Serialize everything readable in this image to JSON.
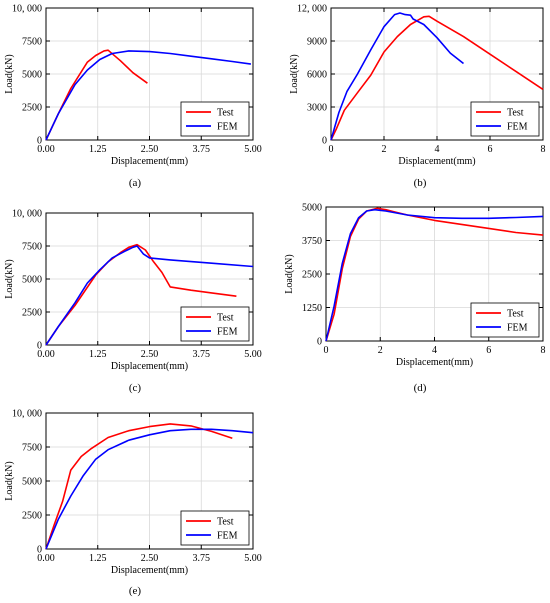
{
  "chart_data": [
    {
      "type": "line",
      "caption": "(a)",
      "xlabel": "Displacement(mm)",
      "ylabel": "Load(kN)",
      "xlim": [
        0,
        5
      ],
      "ylim": [
        0,
        10000
      ],
      "xticks": [
        0,
        1.25,
        2.5,
        3.75,
        5
      ],
      "xtick_labels": [
        "0.00",
        "1.25",
        "2.50",
        "3.75",
        "5.00"
      ],
      "yticks": [
        0,
        2500,
        5000,
        7500,
        10000
      ],
      "ytick_labels": [
        "0",
        "2500",
        "5000",
        "7500",
        "10, 000"
      ],
      "grid": true,
      "legend": "bottom-right",
      "series": [
        {
          "name": "Test",
          "color": "#ff0000",
          "x": [
            0,
            0.3,
            0.6,
            1.0,
            1.2,
            1.4,
            1.5,
            1.8,
            2.1,
            2.45
          ],
          "y": [
            0,
            2000,
            3900,
            5900,
            6400,
            6750,
            6800,
            6000,
            5100,
            4300
          ]
        },
        {
          "name": "FEM",
          "color": "#0000ff",
          "x": [
            0,
            0.3,
            0.7,
            1.0,
            1.3,
            1.6,
            2.0,
            2.5,
            3.0,
            3.5,
            4.0,
            4.5,
            4.95
          ],
          "y": [
            0,
            2000,
            4200,
            5300,
            6100,
            6550,
            6750,
            6700,
            6550,
            6350,
            6150,
            5950,
            5750
          ]
        }
      ]
    },
    {
      "type": "line",
      "caption": "(b)",
      "xlabel": "Displacement(mm)",
      "ylabel": "Load(kN)",
      "xlim": [
        0,
        8
      ],
      "ylim": [
        0,
        12000
      ],
      "xticks": [
        0,
        2,
        4,
        6,
        8
      ],
      "xtick_labels": [
        "0",
        "2",
        "4",
        "6",
        "8"
      ],
      "yticks": [
        0,
        3000,
        6000,
        9000,
        12000
      ],
      "ytick_labels": [
        "0",
        "3000",
        "6000",
        "9000",
        "12, 000"
      ],
      "grid": true,
      "legend": "bottom-right",
      "series": [
        {
          "name": "Test",
          "color": "#ff0000",
          "x": [
            0,
            0.2,
            0.5,
            1.0,
            1.5,
            2.0,
            2.5,
            3.0,
            3.5,
            3.7,
            4.0,
            5.0,
            6.0,
            7.0,
            8.0
          ],
          "y": [
            0,
            1000,
            2700,
            4300,
            5900,
            8000,
            9400,
            10500,
            11200,
            11250,
            10800,
            9400,
            7800,
            6200,
            4600
          ]
        },
        {
          "name": "FEM",
          "color": "#0000ff",
          "x": [
            0,
            0.3,
            0.6,
            1.0,
            1.5,
            2.0,
            2.4,
            2.6,
            2.8,
            3.0,
            3.1,
            3.5,
            4.0,
            4.5,
            5.0
          ],
          "y": [
            0,
            2500,
            4400,
            6000,
            8200,
            10300,
            11400,
            11550,
            11400,
            11350,
            11000,
            10500,
            9300,
            7900,
            6950
          ]
        }
      ]
    },
    {
      "type": "line",
      "caption": "(c)",
      "xlabel": "Displacement(mm)",
      "ylabel": "Load(kN)",
      "xlim": [
        0,
        5
      ],
      "ylim": [
        0,
        10000
      ],
      "xticks": [
        0,
        1.25,
        2.5,
        3.75,
        5
      ],
      "xtick_labels": [
        "0.00",
        "1.25",
        "2.50",
        "3.75",
        "5.00"
      ],
      "yticks": [
        0,
        2500,
        5000,
        7500,
        10000
      ],
      "ytick_labels": [
        "0",
        "2500",
        "5000",
        "7500",
        "10, 000"
      ],
      "grid": true,
      "legend": "bottom-right",
      "series": [
        {
          "name": "Test",
          "color": "#ff0000",
          "x": [
            0,
            0.3,
            0.7,
            1.2,
            1.5,
            1.8,
            2.0,
            2.2,
            2.4,
            2.6,
            2.8,
            3.0,
            3.5,
            4.0,
            4.6
          ],
          "y": [
            0,
            1400,
            3000,
            5300,
            6300,
            7000,
            7400,
            7600,
            7200,
            6300,
            5500,
            4400,
            4150,
            3950,
            3700
          ]
        },
        {
          "name": "FEM",
          "color": "#0000ff",
          "x": [
            0,
            0.3,
            0.7,
            1.0,
            1.3,
            1.6,
            1.9,
            2.1,
            2.2,
            2.35,
            2.5,
            3.0,
            4.0,
            5.0
          ],
          "y": [
            0,
            1400,
            3200,
            4700,
            5700,
            6600,
            7100,
            7400,
            7500,
            6900,
            6600,
            6450,
            6200,
            5950
          ]
        }
      ]
    },
    {
      "type": "line",
      "caption": "(d)",
      "xlabel": "Displacement(mm)",
      "ylabel": "Load(kN)",
      "xlim": [
        0,
        8
      ],
      "ylim": [
        0,
        5000
      ],
      "xticks": [
        0,
        2,
        4,
        6,
        8
      ],
      "xtick_labels": [
        "0",
        "2",
        "4",
        "6",
        "8"
      ],
      "yticks": [
        0,
        1250,
        2500,
        3750,
        5000
      ],
      "ytick_labels": [
        "0",
        "1250",
        "2500",
        "3750",
        "5000"
      ],
      "grid": true,
      "legend": "bottom-right",
      "series": [
        {
          "name": "Test",
          "color": "#ff0000",
          "x": [
            0,
            0.3,
            0.6,
            0.9,
            1.2,
            1.5,
            1.9,
            2.2,
            2.6,
            3.0,
            4.0,
            5.0,
            6.0,
            7.0,
            8.0
          ],
          "y": [
            0,
            1000,
            2700,
            3900,
            4550,
            4850,
            4950,
            4900,
            4800,
            4700,
            4500,
            4350,
            4200,
            4050,
            3950
          ]
        },
        {
          "name": "FEM",
          "color": "#0000ff",
          "x": [
            0,
            0.3,
            0.6,
            0.9,
            1.2,
            1.5,
            1.8,
            2.2,
            3.0,
            4.0,
            5.0,
            6.0,
            7.0,
            8.0
          ],
          "y": [
            0,
            1300,
            2900,
            4000,
            4600,
            4850,
            4900,
            4850,
            4700,
            4600,
            4580,
            4580,
            4610,
            4650
          ]
        }
      ]
    },
    {
      "type": "line",
      "caption": "(e)",
      "xlabel": "Displacement(mm)",
      "ylabel": "Load(kN)",
      "xlim": [
        0,
        5
      ],
      "ylim": [
        0,
        10000
      ],
      "xticks": [
        0,
        1.25,
        2.5,
        3.75,
        5
      ],
      "xtick_labels": [
        "0.00",
        "1.25",
        "2.50",
        "3.75",
        "5.00"
      ],
      "yticks": [
        0,
        2500,
        5000,
        7500,
        10000
      ],
      "ytick_labels": [
        "0",
        "2500",
        "5000",
        "7500",
        "10, 000"
      ],
      "grid": true,
      "legend": "bottom-right",
      "series": [
        {
          "name": "Test",
          "color": "#ff0000",
          "x": [
            0,
            0.2,
            0.4,
            0.6,
            0.85,
            1.1,
            1.5,
            2.0,
            2.5,
            3.0,
            3.5,
            4.0,
            4.5
          ],
          "y": [
            0,
            1800,
            3500,
            5800,
            6800,
            7400,
            8200,
            8700,
            9000,
            9200,
            9050,
            8650,
            8150
          ]
        },
        {
          "name": "FEM",
          "color": "#0000ff",
          "x": [
            0,
            0.3,
            0.6,
            0.9,
            1.2,
            1.5,
            2.0,
            2.5,
            3.0,
            3.5,
            4.0,
            4.5,
            5.0
          ],
          "y": [
            0,
            2200,
            3900,
            5400,
            6600,
            7300,
            8000,
            8400,
            8700,
            8800,
            8800,
            8700,
            8550
          ]
        }
      ]
    }
  ]
}
